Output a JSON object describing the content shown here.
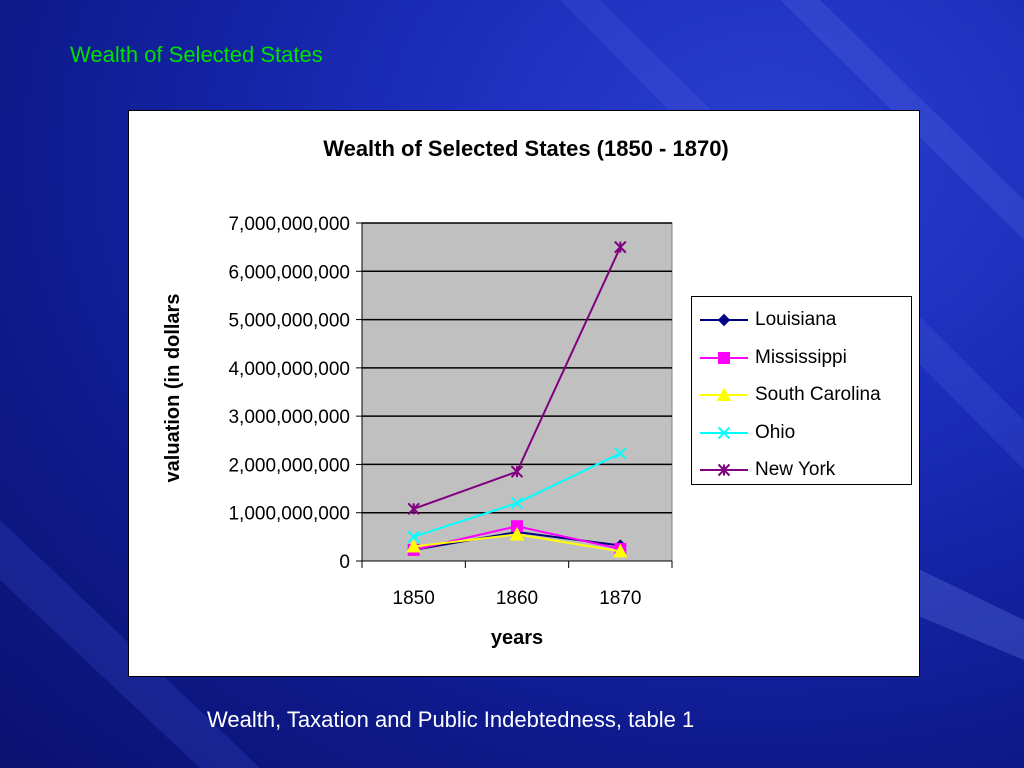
{
  "slide": {
    "title": "Wealth of Selected States",
    "caption": "Wealth, Taxation and Public Indebtedness, table 1"
  },
  "chart_data": {
    "type": "line",
    "title": "Wealth of Selected States (1850 - 1870)",
    "xlabel": "years",
    "ylabel": "valuation (in dollars",
    "categories": [
      "1850",
      "1860",
      "1870"
    ],
    "ylim": [
      0,
      7000000000
    ],
    "yticks": [
      0,
      1000000000,
      2000000000,
      3000000000,
      4000000000,
      5000000000,
      6000000000,
      7000000000
    ],
    "ytick_labels": [
      "0",
      "1,000,000,000",
      "2,000,000,000",
      "3,000,000,000",
      "4,000,000,000",
      "5,000,000,000",
      "6,000,000,000",
      "7,000,000,000"
    ],
    "grid": true,
    "legend_position": "right",
    "series": [
      {
        "name": "Louisiana",
        "values": [
          230000000,
          600000000,
          320000000
        ],
        "color": "#000080",
        "marker": "diamond"
      },
      {
        "name": "Mississippi",
        "values": [
          230000000,
          720000000,
          250000000
        ],
        "color": "#ff00ff",
        "marker": "square"
      },
      {
        "name": "South Carolina",
        "values": [
          300000000,
          550000000,
          200000000
        ],
        "color": "#ffff00",
        "marker": "triangle"
      },
      {
        "name": "Ohio",
        "values": [
          500000000,
          1200000000,
          2230000000
        ],
        "color": "#00ffff",
        "marker": "x"
      },
      {
        "name": "New York",
        "values": [
          1080000000,
          1850000000,
          6500000000
        ],
        "color": "#800080",
        "marker": "star"
      }
    ]
  }
}
